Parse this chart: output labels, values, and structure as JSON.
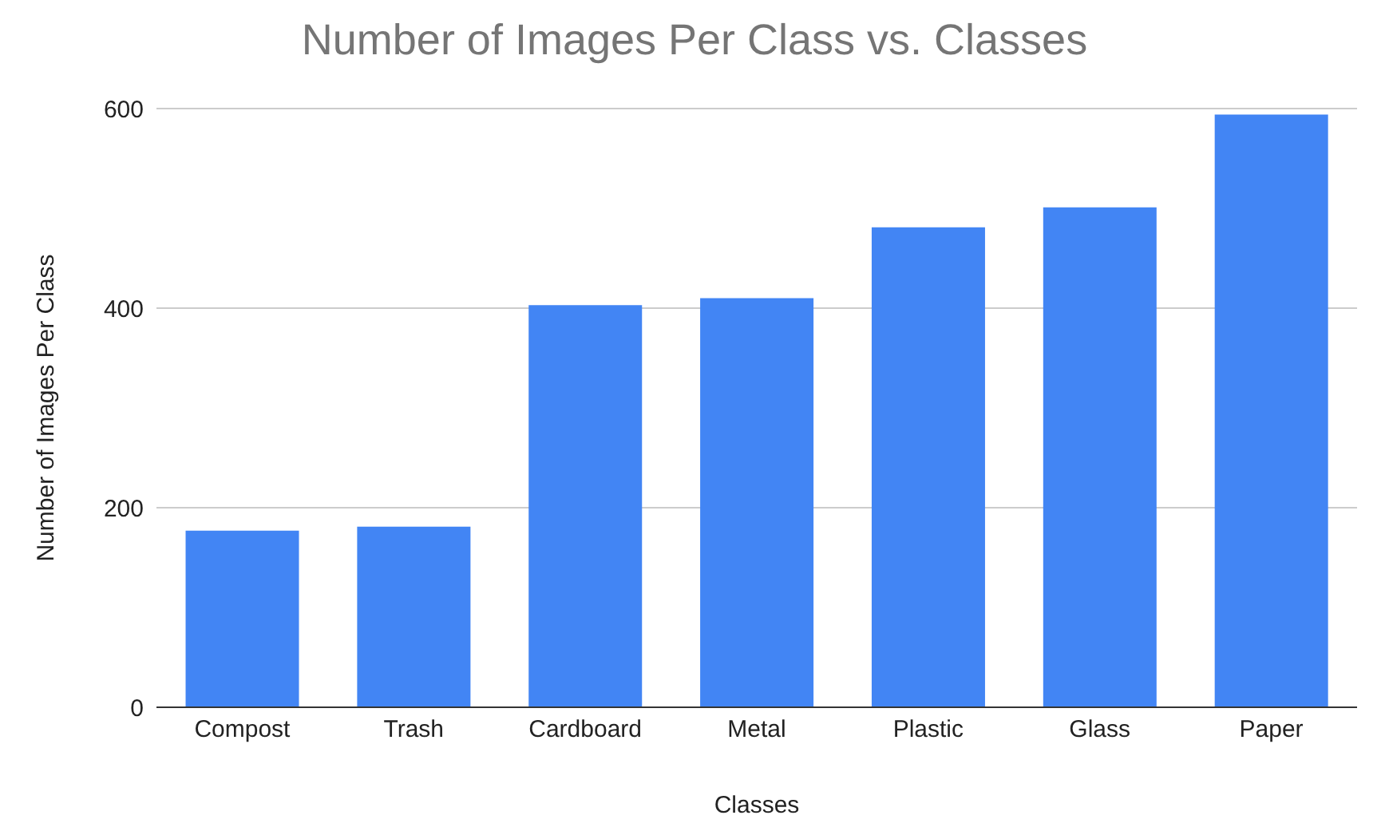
{
  "chart_data": {
    "type": "bar",
    "title": "Number of Images Per Class vs. Classes",
    "xlabel": "Classes",
    "ylabel": "Number of Images Per Class",
    "categories": [
      "Compost",
      "Trash",
      "Cardboard",
      "Metal",
      "Plastic",
      "Glass",
      "Paper"
    ],
    "series": [
      {
        "color": "#4285f4",
        "values": [
          177,
          181,
          403,
          410,
          481,
          501,
          594
        ]
      }
    ],
    "ylim": [
      0,
      600
    ],
    "yticks": [
      0,
      200,
      400,
      600
    ],
    "grid": "y"
  }
}
